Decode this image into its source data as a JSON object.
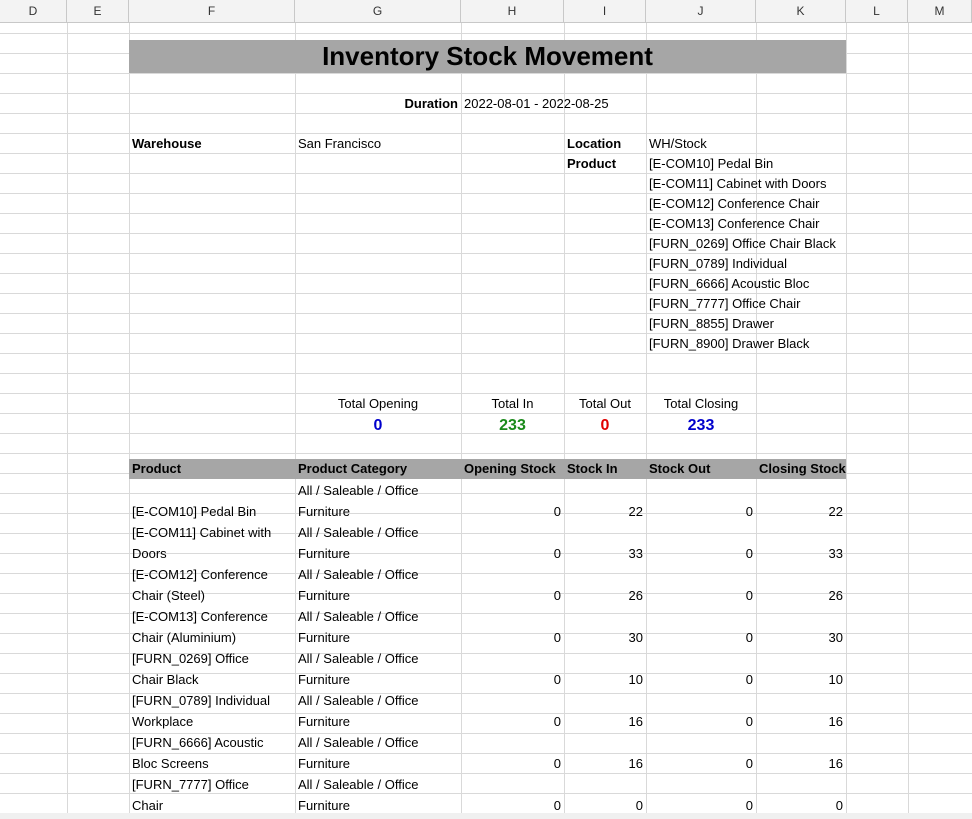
{
  "columns": [
    "D",
    "E",
    "F",
    "G",
    "H",
    "I",
    "J",
    "K",
    "L",
    "M"
  ],
  "report": {
    "title": "Inventory Stock Movement",
    "duration_label": "Duration",
    "duration_value": "2022-08-01 - 2022-08-25",
    "warehouse_label": "Warehouse",
    "warehouse_value": "San Francisco",
    "location_label": "Location",
    "location_value": "WH/Stock",
    "product_label": "Product",
    "products_filter": [
      "[E-COM10] Pedal Bin",
      "[E-COM11] Cabinet with Doors",
      "[E-COM12] Conference Chair",
      "[E-COM13] Conference Chair",
      "[FURN_0269] Office Chair Black",
      "[FURN_0789] Individual",
      "[FURN_6666] Acoustic Bloc",
      "[FURN_7777] Office Chair",
      "[FURN_8855] Drawer",
      "[FURN_8900] Drawer Black"
    ]
  },
  "totals": {
    "opening_label": "Total Opening",
    "opening_value": "0",
    "in_label": "Total In",
    "in_value": "233",
    "out_label": "Total Out",
    "out_value": "0",
    "closing_label": "Total Closing",
    "closing_value": "233",
    "colors": {
      "opening": "#0000cc",
      "in": "#1a8a1a",
      "out": "#e00000",
      "closing": "#0000cc"
    }
  },
  "table": {
    "headers": [
      "Product",
      "Product Category",
      "Opening Stock",
      "Stock In",
      "Stock Out",
      "Closing Stock"
    ],
    "rows": [
      {
        "product_line1": "",
        "product_line2": "[E-COM10] Pedal Bin",
        "category_line1": "All / Saleable / Office",
        "category_line2": "Furniture",
        "opening": "0",
        "stock_in": "22",
        "stock_out": "0",
        "closing": "22"
      },
      {
        "product_line1": "[E-COM11] Cabinet with",
        "product_line2": "Doors",
        "category_line1": "All / Saleable / Office",
        "category_line2": "Furniture",
        "opening": "0",
        "stock_in": "33",
        "stock_out": "0",
        "closing": "33"
      },
      {
        "product_line1": "[E-COM12] Conference",
        "product_line2": "Chair (Steel)",
        "category_line1": "All / Saleable / Office",
        "category_line2": "Furniture",
        "opening": "0",
        "stock_in": "26",
        "stock_out": "0",
        "closing": "26"
      },
      {
        "product_line1": "[E-COM13] Conference",
        "product_line2": "Chair (Aluminium)",
        "category_line1": "All / Saleable / Office",
        "category_line2": "Furniture",
        "opening": "0",
        "stock_in": "30",
        "stock_out": "0",
        "closing": "30"
      },
      {
        "product_line1": "[FURN_0269] Office",
        "product_line2": "Chair Black",
        "category_line1": "All / Saleable / Office",
        "category_line2": "Furniture",
        "opening": "0",
        "stock_in": "10",
        "stock_out": "0",
        "closing": "10"
      },
      {
        "product_line1": "[FURN_0789] Individual",
        "product_line2": "Workplace",
        "category_line1": "All / Saleable / Office",
        "category_line2": "Furniture",
        "opening": "0",
        "stock_in": "16",
        "stock_out": "0",
        "closing": "16"
      },
      {
        "product_line1": "[FURN_6666] Acoustic",
        "product_line2": "Bloc Screens",
        "category_line1": "All / Saleable / Office",
        "category_line2": "Furniture",
        "opening": "0",
        "stock_in": "16",
        "stock_out": "0",
        "closing": "16"
      },
      {
        "product_line1": "[FURN_7777] Office",
        "product_line2": "Chair",
        "category_line1": "All / Saleable / Office",
        "category_line2": "Furniture",
        "opening": "0",
        "stock_in": "0",
        "stock_out": "0",
        "closing": "0"
      }
    ]
  }
}
